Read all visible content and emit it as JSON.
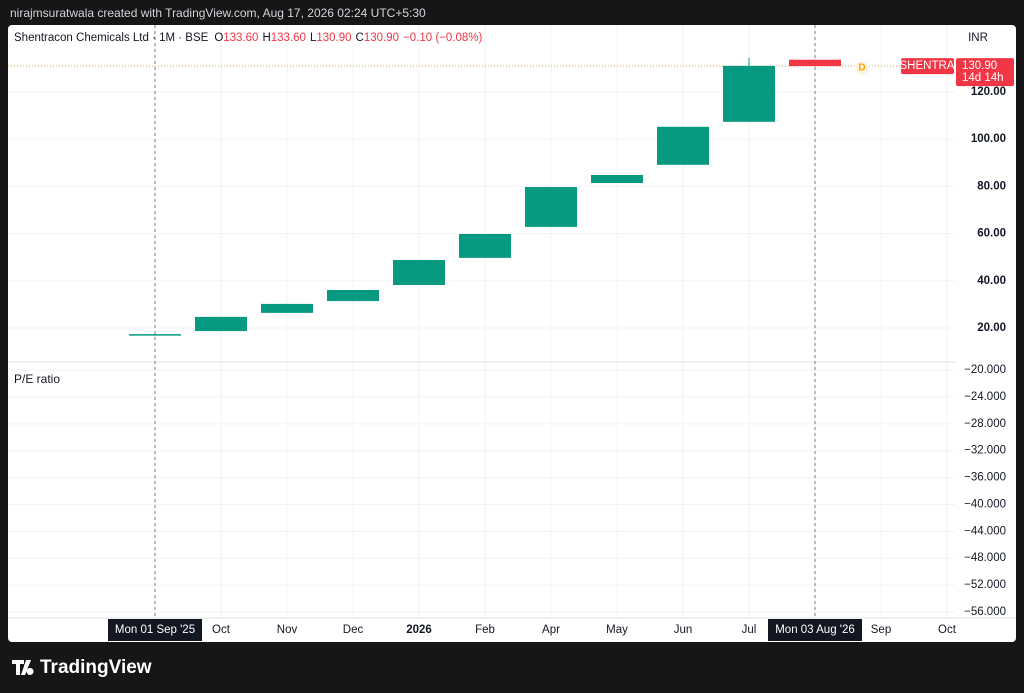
{
  "header": {
    "text": "nirajmsuratwala created with TradingView.com, Aug 17, 2026 02:24 UTC+5:30"
  },
  "footer": {
    "brand": "TradingView"
  },
  "chart_data": [
    {
      "type": "candlestick",
      "title": "Shentracon Chemicals Ltd · 1M · BSE",
      "legend": {
        "o": "O",
        "open": "133.60",
        "h": "H",
        "high": "133.60",
        "l": "L",
        "low": "130.90",
        "c": "C",
        "close": "130.90",
        "change": "−0.10 (−0.08%)"
      },
      "currency": "INR",
      "categories": [
        "Mon 01 Sep '25",
        "Oct",
        "Nov",
        "Dec",
        "2026",
        "Feb",
        "Apr",
        "May",
        "Jun",
        "Jul",
        "Mon 03 Aug '26",
        "Sep",
        "Oct"
      ],
      "open": [
        17.0,
        18.7,
        26.4,
        31.4,
        38.2,
        49.7,
        62.8,
        81.4,
        89.1,
        107.3,
        133.6,
        null,
        null
      ],
      "high": [
        17.4,
        24.7,
        30.2,
        36.1,
        48.8,
        59.8,
        79.7,
        84.8,
        105.2,
        134.4,
        133.6,
        null,
        null
      ],
      "low": [
        17.0,
        18.7,
        26.4,
        31.4,
        38.2,
        49.7,
        62.8,
        81.4,
        89.1,
        107.3,
        130.9,
        null,
        null
      ],
      "close": [
        17.4,
        24.7,
        30.2,
        36.1,
        48.8,
        59.8,
        79.7,
        84.8,
        105.2,
        131.0,
        130.9,
        null,
        null
      ],
      "up_color": "#089981",
      "down_color": "#f23645",
      "ylim": [
        5.6,
        148.3
      ],
      "yticks": [
        {
          "value": 20,
          "label": "20.00"
        },
        {
          "value": 40,
          "label": "40.00"
        },
        {
          "value": 60,
          "label": "60.00"
        },
        {
          "value": 80,
          "label": "80.00"
        },
        {
          "value": 100,
          "label": "100.00"
        },
        {
          "value": 120,
          "label": "120.00"
        }
      ],
      "grid": true,
      "highlighted_x": [
        0,
        10
      ],
      "price_label": {
        "symbol": "SHENTRA",
        "price": "130.90",
        "countdown": "14d 14h"
      },
      "marker": "D"
    },
    {
      "type": "line",
      "title": "P/E ratio",
      "ylim": [
        -56.9,
        -18.8
      ],
      "yticks": [
        {
          "value": -20,
          "label": "−20.000"
        },
        {
          "value": -24,
          "label": "−24.000"
        },
        {
          "value": -28,
          "label": "−28.000"
        },
        {
          "value": -32,
          "label": "−32.000"
        },
        {
          "value": -36,
          "label": "−36.000"
        },
        {
          "value": -40,
          "label": "−40.000"
        },
        {
          "value": -44,
          "label": "−44.000"
        },
        {
          "value": -48,
          "label": "−48.000"
        },
        {
          "value": -52,
          "label": "−52.000"
        },
        {
          "value": -56,
          "label": "−56.000"
        }
      ],
      "grid": true
    }
  ]
}
